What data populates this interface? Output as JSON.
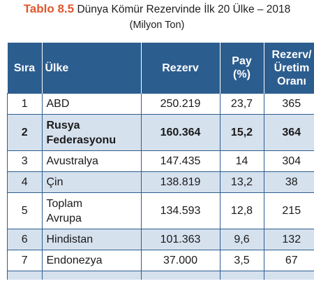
{
  "caption": {
    "number": "Tablo 8.5",
    "title": "Dünya Kömür Rezervinde İlk 20 Ülke – 2018",
    "unit": "(Milyon Ton)"
  },
  "table": {
    "headers": {
      "sira": "Sıra",
      "ulke": "Ülke",
      "rezerv": "Rezerv",
      "pay_line1": "Pay",
      "pay_line2": "(%)",
      "oran_line1": "Rezerv/",
      "oran_line2": "Üretim",
      "oran_line3": "Oranı"
    },
    "rows": [
      {
        "sira": "1",
        "ulke": "ABD",
        "rezerv": "250.219",
        "pay": "23,7",
        "oran": "365"
      },
      {
        "sira": "2",
        "ulke_line1": "Rusya",
        "ulke_line2": "Federasyonu",
        "rezerv": "160.364",
        "pay": "15,2",
        "oran": "364"
      },
      {
        "sira": "3",
        "ulke": "Avustralya",
        "rezerv": "147.435",
        "pay": "14",
        "oran": "304"
      },
      {
        "sira": "4",
        "ulke": "Çin",
        "rezerv": "138.819",
        "pay": "13,2",
        "oran": "38"
      },
      {
        "sira": "5",
        "ulke_line1": "Toplam",
        "ulke_line2": "Avrupa",
        "rezerv": "134.593",
        "pay": "12,8",
        "oran": "215"
      },
      {
        "sira": "6",
        "ulke": "Hindistan",
        "rezerv": "101.363",
        "pay": "9,6",
        "oran": "132"
      },
      {
        "sira": "7",
        "ulke": "Endonezya",
        "rezerv": "37.000",
        "pay": "3,5",
        "oran": "67"
      }
    ]
  }
}
